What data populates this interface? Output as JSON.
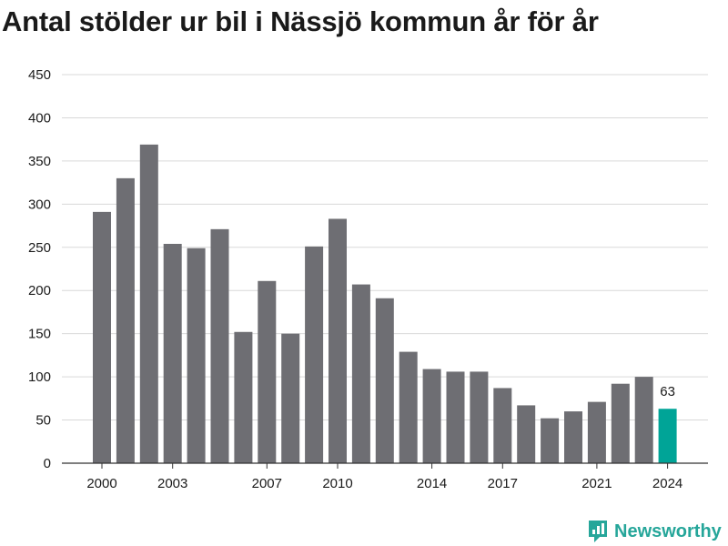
{
  "chart_data": {
    "type": "bar",
    "title": "Antal stölder ur bil i Nässjö kommun år för år",
    "x": [
      2000,
      2001,
      2002,
      2003,
      2004,
      2005,
      2006,
      2007,
      2008,
      2009,
      2010,
      2011,
      2012,
      2013,
      2014,
      2015,
      2016,
      2017,
      2018,
      2019,
      2020,
      2021,
      2022,
      2023,
      2024
    ],
    "values": [
      291,
      330,
      369,
      254,
      249,
      271,
      152,
      211,
      150,
      251,
      283,
      207,
      191,
      129,
      109,
      106,
      106,
      87,
      67,
      52,
      60,
      71,
      92,
      100,
      63
    ],
    "x_tick_labels": [
      "2000",
      "2003",
      "2007",
      "2010",
      "2014",
      "2017",
      "2021",
      "2024"
    ],
    "y_ticks": [
      0,
      50,
      100,
      150,
      200,
      250,
      300,
      350,
      400,
      450
    ],
    "ylim": [
      0,
      450
    ],
    "grid": true,
    "highlight": {
      "year": 2024,
      "label": "63"
    },
    "colors": {
      "bar": "#6e6e73",
      "highlight": "#00a497",
      "grid": "#d9d9d9"
    }
  },
  "brand": {
    "name": "Newsworthy",
    "icon": "newsworthy-logo-icon",
    "color": "#26a69a"
  }
}
